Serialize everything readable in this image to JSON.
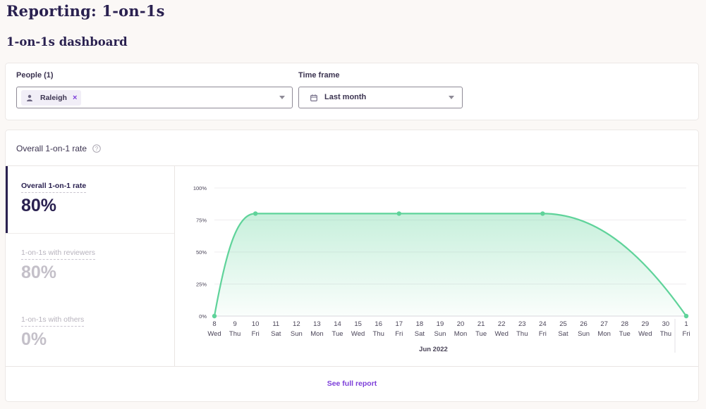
{
  "page": {
    "title": "Reporting: 1-on-1s",
    "section_title": "1-on-1s dashboard"
  },
  "filters": {
    "people_label": "People (1)",
    "people_chip": "Raleigh",
    "people_chip_remove": "×",
    "timeframe_label": "Time frame",
    "timeframe_value": "Last month"
  },
  "card": {
    "title": "Overall 1-on-1 rate",
    "footer_link": "See full report"
  },
  "metrics": [
    {
      "label": "Overall 1-on-1 rate",
      "value": "80%"
    },
    {
      "label": "1-on-1s with reviewers",
      "value": "80%"
    },
    {
      "label": "1-on-1s with others",
      "value": "0%"
    }
  ],
  "icons": {
    "person": "person-icon",
    "calendar": "calendar-icon",
    "help": "help-circle-icon",
    "caret": "chevron-down-icon"
  },
  "colors": {
    "accent": "#7d3fd9",
    "line": "#5fd39a",
    "title": "#2a2150"
  },
  "chart_data": {
    "type": "area",
    "title": "",
    "xlabel": "Jun 2022",
    "ylabel": "",
    "ylim": [
      0,
      100
    ],
    "y_ticks": [
      "0%",
      "25%",
      "50%",
      "75%",
      "100%"
    ],
    "x": [
      {
        "d": "8",
        "w": "Wed"
      },
      {
        "d": "9",
        "w": "Thu"
      },
      {
        "d": "10",
        "w": "Fri"
      },
      {
        "d": "11",
        "w": "Sat"
      },
      {
        "d": "12",
        "w": "Sun"
      },
      {
        "d": "13",
        "w": "Mon"
      },
      {
        "d": "14",
        "w": "Tue"
      },
      {
        "d": "15",
        "w": "Wed"
      },
      {
        "d": "16",
        "w": "Thu"
      },
      {
        "d": "17",
        "w": "Fri"
      },
      {
        "d": "18",
        "w": "Sat"
      },
      {
        "d": "19",
        "w": "Sun"
      },
      {
        "d": "20",
        "w": "Mon"
      },
      {
        "d": "21",
        "w": "Tue"
      },
      {
        "d": "22",
        "w": "Wed"
      },
      {
        "d": "23",
        "w": "Thu"
      },
      {
        "d": "24",
        "w": "Fri"
      },
      {
        "d": "25",
        "w": "Sat"
      },
      {
        "d": "26",
        "w": "Sun"
      },
      {
        "d": "27",
        "w": "Mon"
      },
      {
        "d": "28",
        "w": "Tue"
      },
      {
        "d": "29",
        "w": "Wed"
      },
      {
        "d": "30",
        "w": "Thu"
      },
      {
        "d": "1",
        "w": "Fri"
      }
    ],
    "points": [
      {
        "x": "8",
        "y": 0
      },
      {
        "x": "10",
        "y": 80
      },
      {
        "x": "17",
        "y": 80
      },
      {
        "x": "24",
        "y": 80
      },
      {
        "x": "1",
        "y": 0
      }
    ],
    "grid": true,
    "legend": "none"
  }
}
